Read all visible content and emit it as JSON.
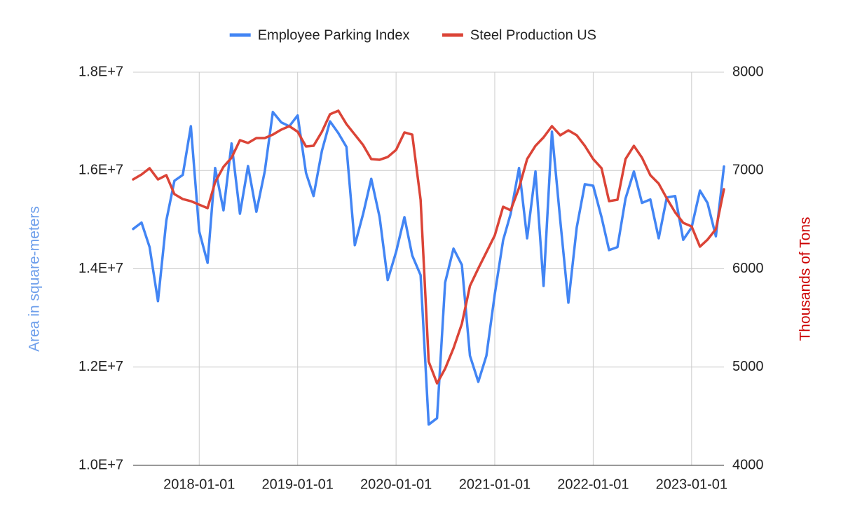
{
  "chart_data": {
    "type": "line",
    "y_label": "Area in square-meters",
    "y2_label": "Thousands of Tons",
    "legend": "top",
    "grid": true,
    "x": [
      "2017-05-01",
      "2017-06-01",
      "2017-07-01",
      "2017-08-01",
      "2017-09-01",
      "2017-10-01",
      "2017-11-01",
      "2017-12-01",
      "2018-01-01",
      "2018-02-01",
      "2018-03-01",
      "2018-04-01",
      "2018-05-01",
      "2018-06-01",
      "2018-07-01",
      "2018-08-01",
      "2018-09-01",
      "2018-10-01",
      "2018-11-01",
      "2018-12-01",
      "2019-01-01",
      "2019-02-01",
      "2019-03-01",
      "2019-04-01",
      "2019-05-01",
      "2019-06-01",
      "2019-07-01",
      "2019-08-01",
      "2019-09-01",
      "2019-10-01",
      "2019-11-01",
      "2019-12-01",
      "2020-01-01",
      "2020-02-01",
      "2020-03-01",
      "2020-04-01",
      "2020-05-01",
      "2020-06-01",
      "2020-07-01",
      "2020-08-01",
      "2020-09-01",
      "2020-10-01",
      "2020-11-01",
      "2020-12-01",
      "2021-01-01",
      "2021-02-01",
      "2021-03-01",
      "2021-04-01",
      "2021-05-01",
      "2021-06-01",
      "2021-07-01",
      "2021-08-01",
      "2021-09-01",
      "2021-10-01",
      "2021-11-01",
      "2021-12-01",
      "2022-01-01",
      "2022-02-01",
      "2022-03-01",
      "2022-04-01",
      "2022-05-01",
      "2022-06-01",
      "2022-07-01",
      "2022-08-01",
      "2022-09-01",
      "2022-10-01",
      "2022-11-01",
      "2022-12-01",
      "2023-01-01",
      "2023-02-01",
      "2023-03-01",
      "2023-04-01",
      "2023-05-01"
    ],
    "xlim": [
      "2017-05-01",
      "2023-05-01"
    ],
    "xticks": [
      "2018-01-01",
      "2019-01-01",
      "2020-01-01",
      "2021-01-01",
      "2022-01-01",
      "2023-01-01"
    ],
    "ylim": [
      10000000,
      18000000
    ],
    "yticks": [
      {
        "value": 10000000,
        "label": "1.0E+7"
      },
      {
        "value": 12000000,
        "label": "1.2E+7"
      },
      {
        "value": 14000000,
        "label": "1.4E+7"
      },
      {
        "value": 16000000,
        "label": "1.6E+7"
      },
      {
        "value": 18000000,
        "label": "1.8E+7"
      }
    ],
    "y2lim": [
      4000,
      8000
    ],
    "y2ticks": [
      4000,
      5000,
      6000,
      7000,
      8000
    ],
    "series": [
      {
        "name": "Employee Parking Index",
        "color": "#4285f4",
        "axis": "y",
        "values": [
          14810000,
          14940000,
          14440000,
          13340000,
          14980000,
          15790000,
          15910000,
          16900000,
          14760000,
          14120000,
          16050000,
          15190000,
          16550000,
          15120000,
          16090000,
          15160000,
          15980000,
          17190000,
          16980000,
          16900000,
          17120000,
          15950000,
          15480000,
          16400000,
          17000000,
          16760000,
          16480000,
          14480000,
          15120000,
          15830000,
          15050000,
          13770000,
          14340000,
          15050000,
          14270000,
          13870000,
          10830000,
          10960000,
          13720000,
          14410000,
          14080000,
          12230000,
          11700000,
          12230000,
          13480000,
          14580000,
          15120000,
          16050000,
          14620000,
          15980000,
          13650000,
          16790000,
          14980000,
          13310000,
          14840000,
          15720000,
          15690000,
          15050000,
          14380000,
          14440000,
          15430000,
          15980000,
          15340000,
          15410000,
          14620000,
          15450000,
          15480000,
          14590000,
          14840000,
          15590000,
          15340000,
          14660000,
          16080000
        ]
      },
      {
        "name": "Steel Production US",
        "color": "#db4437",
        "axis": "y2",
        "values": [
          6909,
          6959,
          7023,
          6909,
          6952,
          6759,
          6709,
          6688,
          6652,
          6617,
          6881,
          7037,
          7130,
          7308,
          7280,
          7330,
          7330,
          7365,
          7415,
          7451,
          7394,
          7244,
          7251,
          7394,
          7572,
          7608,
          7472,
          7365,
          7258,
          7116,
          7109,
          7137,
          7209,
          7387,
          7365,
          6702,
          5055,
          4834,
          4984,
          5191,
          5440,
          5825,
          6004,
          6168,
          6339,
          6631,
          6595,
          6823,
          7116,
          7251,
          7337,
          7451,
          7358,
          7408,
          7358,
          7251,
          7116,
          7023,
          6688,
          6702,
          7116,
          7251,
          7130,
          6952,
          6866,
          6716,
          6574,
          6467,
          6431,
          6225,
          6296,
          6403,
          6809
        ]
      }
    ]
  }
}
